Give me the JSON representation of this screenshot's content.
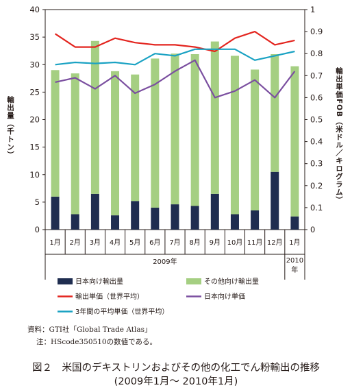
{
  "chart_data": {
    "type": "bar+line",
    "categories": [
      "1月",
      "2月",
      "3月",
      "4月",
      "5月",
      "6月",
      "7月",
      "8月",
      "9月",
      "10月",
      "11月",
      "12月",
      "1月"
    ],
    "year_groups": [
      {
        "label": "2009年",
        "from": 0,
        "to": 11
      },
      {
        "label": "2010年",
        "from": 12,
        "to": 12
      }
    ],
    "left_axis": {
      "label": "輸出量（千トン）",
      "ylim": [
        0,
        40
      ],
      "ticks": [
        0,
        5,
        10,
        15,
        20,
        25,
        30,
        35,
        40
      ]
    },
    "right_axis": {
      "label": "輸出単価FOB（米ドル／キログラム）",
      "ylim": [
        0,
        1
      ],
      "ticks": [
        "0",
        "0.1",
        "0.2",
        "0.3",
        "0.4",
        "0.5",
        "0.6",
        "0.7",
        "0.8",
        "0.9",
        "1"
      ]
    },
    "bar_series": [
      {
        "name": "日本向け輸出量",
        "color": "#1f2d50",
        "values": [
          6.0,
          2.8,
          6.5,
          2.6,
          5.2,
          4.0,
          4.6,
          4.3,
          6.5,
          2.8,
          3.5,
          10.5,
          2.4
        ]
      },
      {
        "name": "その他向け輸出量",
        "color": "#a5cf82",
        "values": [
          23.0,
          25.6,
          27.8,
          26.2,
          23.0,
          27.1,
          27.4,
          27.6,
          27.7,
          28.8,
          25.6,
          21.4,
          27.3
        ]
      }
    ],
    "line_series": [
      {
        "name": "輸出単価（世界平均）",
        "color": "#e3251f",
        "values": [
          0.89,
          0.83,
          0.83,
          0.87,
          0.85,
          0.84,
          0.84,
          0.83,
          0.81,
          0.87,
          0.9,
          0.84,
          0.86
        ]
      },
      {
        "name": "日本向け単価",
        "color": "#7b4fa0",
        "values": [
          0.67,
          0.69,
          0.64,
          0.7,
          0.62,
          0.66,
          0.72,
          0.77,
          0.6,
          0.63,
          0.68,
          0.6,
          0.72
        ]
      },
      {
        "name": "3年間の平均単価（世界平均）",
        "color": "#1aa2c3",
        "values": [
          0.75,
          0.76,
          0.755,
          0.76,
          0.75,
          0.8,
          0.79,
          0.82,
          0.82,
          0.82,
          0.77,
          0.79,
          0.81
        ]
      }
    ],
    "grid": false
  },
  "notes": {
    "source": "資料：GTI社「Global Trade Atlas」",
    "note": "注：HScode350510の数値である。"
  },
  "caption": {
    "line1": "図２　米国のデキストリンおよびその他の化工でん粉輸出の推移",
    "line2": "(2009年1月～ 2010年1月)"
  }
}
